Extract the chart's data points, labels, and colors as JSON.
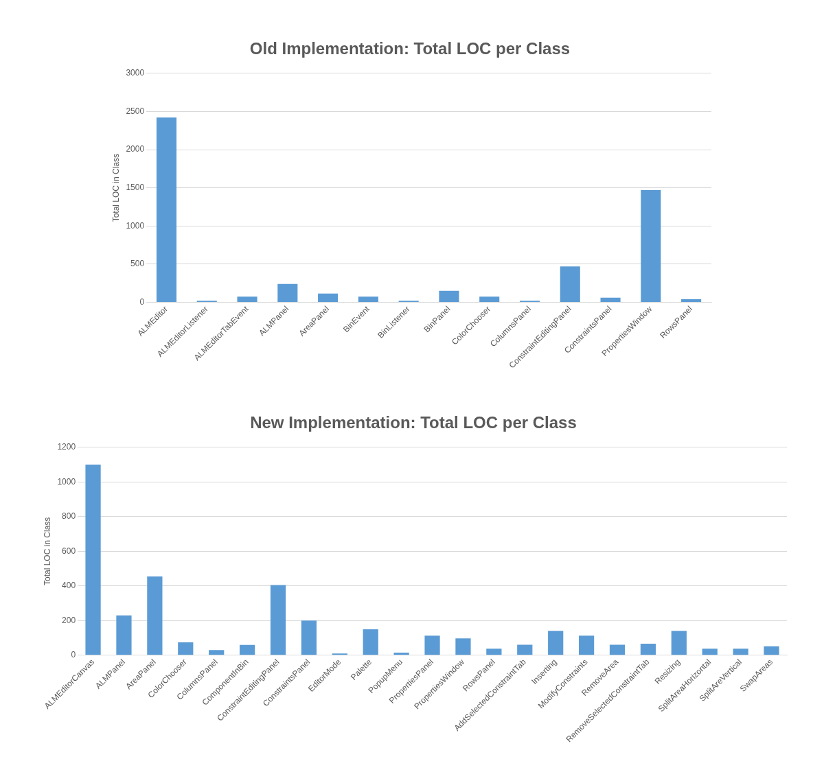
{
  "chart_data": [
    {
      "type": "bar",
      "title": "Old Implementation: Total LOC per Class",
      "ylabel": "Total LOC in Class",
      "categories": [
        "ALMEditor",
        "ALMEditorListener",
        "ALMEditorTabEvent",
        "ALMPanel",
        "AreaPanel",
        "BinEvent",
        "BinListener",
        "BinPanel",
        "ColorChooser",
        "ColumnsPanel",
        "ConstraintEditingPanel",
        "ConstraintsPanel",
        "PropertiesWindow",
        "RowsPanel"
      ],
      "values": [
        2420,
        20,
        75,
        240,
        115,
        75,
        20,
        150,
        75,
        20,
        470,
        60,
        1470,
        40
      ],
      "color": "#5b9bd5",
      "ylim": [
        0,
        3000
      ],
      "yticks": [
        0,
        500,
        1000,
        1500,
        2000,
        2500,
        3000
      ],
      "grid": "y",
      "legend": false
    },
    {
      "type": "bar",
      "title": "New Implementation: Total LOC per Class",
      "ylabel": "Total LOC in Class",
      "categories": [
        "ALMEditorCanvas",
        "ALMPanel",
        "AreaPanel",
        "ColorChooser",
        "ColumnsPanel",
        "ComponentInBin",
        "ConstraintEditingPanel",
        "ConstraintsPanel",
        "EditorMode",
        "Palette",
        "PopupMenu",
        "PropertiesPanel",
        "PropertiesWindow",
        "RowsPanel",
        "AddSelectedConstraintTab",
        "Inserting",
        "ModifyConstraints",
        "RemoveArea",
        "RemoveSelectedConstraintTab",
        "Resizing",
        "SplitAreaHorizontal",
        "SplitAreVertical",
        "SwapAreas"
      ],
      "values": [
        1100,
        230,
        455,
        75,
        30,
        60,
        405,
        200,
        10,
        150,
        15,
        113,
        97,
        38,
        61,
        141,
        113,
        61,
        67,
        141,
        38,
        38,
        52
      ],
      "color": "#5b9bd5",
      "ylim": [
        0,
        1200
      ],
      "yticks": [
        0,
        200,
        400,
        600,
        800,
        1000,
        1200
      ],
      "grid": "y",
      "legend": false
    }
  ]
}
